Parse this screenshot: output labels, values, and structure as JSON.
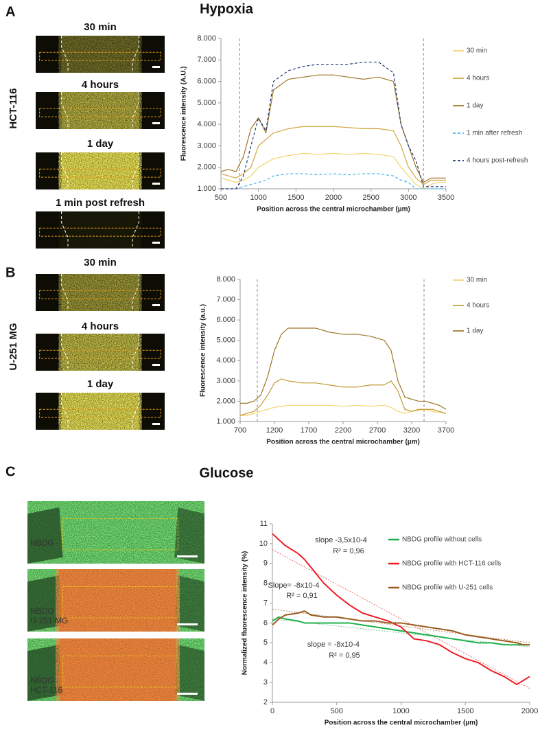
{
  "figure": {
    "panels": [
      {
        "letter": "A",
        "title": "Hypoxia",
        "cell_line": "HCT-116",
        "image_labels": [
          "30 min",
          "4 hours",
          "1 day",
          "1 min post refresh"
        ]
      },
      {
        "letter": "B",
        "cell_line": "U-251 MG",
        "image_labels": [
          "30 min",
          "4 hours",
          "1 day"
        ]
      },
      {
        "letter": "C",
        "title": "Glucose",
        "image_labels": [
          [
            "NBDG"
          ],
          [
            "NBDG",
            "U-251 MG"
          ],
          [
            "NBDG",
            "HCT-116"
          ]
        ]
      }
    ]
  },
  "chart_data": [
    {
      "type": "line",
      "xlabel": "Position across the central microchamber (µm)",
      "ylabel": "Fluorescence intensity (A.U.)",
      "xlim": [
        500,
        3500
      ],
      "xticks": [
        500,
        1000,
        1500,
        2000,
        2500,
        3000,
        3500
      ],
      "ylim": [
        1000,
        8000
      ],
      "yticks": [
        {
          "value": 1000,
          "label": "1.000"
        },
        {
          "value": 2000,
          "label": "2.000"
        },
        {
          "value": 3000,
          "label": "3.000"
        },
        {
          "value": 4000,
          "label": "4.000"
        },
        {
          "value": 5000,
          "label": "5.000"
        },
        {
          "value": 6000,
          "label": "6.000"
        },
        {
          "value": 7000,
          "label": "7.000"
        },
        {
          "value": 8000,
          "label": "8.000"
        }
      ],
      "vlines": [
        750,
        3200
      ],
      "legend": "right",
      "x": [
        500,
        600,
        700,
        800,
        900,
        1000,
        1100,
        1200,
        1400,
        1600,
        1800,
        2000,
        2200,
        2400,
        2600,
        2800,
        2900,
        3000,
        3100,
        3200,
        3300,
        3400,
        3500
      ],
      "series": [
        {
          "name": "30 min",
          "color": "#f2d36b",
          "dashed": false,
          "values": [
            1500,
            1400,
            1300,
            1400,
            1600,
            2000,
            2200,
            2400,
            2550,
            2650,
            2600,
            2650,
            2600,
            2650,
            2600,
            2500,
            2000,
            1600,
            1200,
            1000,
            1200,
            1300,
            1300
          ]
        },
        {
          "name": "4 hours",
          "color": "#d1a53c",
          "dashed": false,
          "values": [
            1700,
            1600,
            1500,
            1700,
            2000,
            3000,
            3300,
            3600,
            3800,
            3900,
            3900,
            3900,
            3850,
            3800,
            3800,
            3700,
            3000,
            2000,
            1500,
            1200,
            1400,
            1400,
            1400
          ]
        },
        {
          "name": "1 day",
          "color": "#9c7526",
          "dashed": false,
          "values": [
            1800,
            1900,
            1800,
            2500,
            3800,
            4300,
            3600,
            5600,
            6100,
            6200,
            6300,
            6300,
            6200,
            6100,
            6200,
            6000,
            4000,
            3000,
            2000,
            1300,
            1500,
            1500,
            1500
          ]
        },
        {
          "name": "1 min after refresh",
          "color": "#3fb6e6",
          "dashed": true,
          "values": [
            1000,
            1000,
            1000,
            1100,
            1200,
            1300,
            1400,
            1600,
            1700,
            1700,
            1650,
            1700,
            1650,
            1700,
            1700,
            1600,
            1400,
            1300,
            1000,
            1000,
            1000,
            1000,
            1000
          ]
        },
        {
          "name": "4 hours post-refresh",
          "color": "#1f3573",
          "dashed": true,
          "values": [
            1000,
            1000,
            1000,
            1600,
            3000,
            4300,
            3700,
            6000,
            6500,
            6700,
            6800,
            6800,
            6800,
            6900,
            6900,
            6400,
            4000,
            3000,
            2300,
            1100,
            1100,
            1100,
            1100
          ]
        }
      ]
    },
    {
      "type": "line",
      "xlabel": "Position across the central microchamber (µm)",
      "ylabel": "Fluorescence intensity (a.u.)",
      "xlim": [
        700,
        3700
      ],
      "xticks": [
        700,
        1200,
        1700,
        2200,
        2700,
        3200,
        3700
      ],
      "ylim": [
        1000,
        8000
      ],
      "yticks": [
        {
          "value": 1000,
          "label": "1.000"
        },
        {
          "value": 2000,
          "label": "2.000"
        },
        {
          "value": 3000,
          "label": "3.000"
        },
        {
          "value": 4000,
          "label": "4.000"
        },
        {
          "value": 5000,
          "label": "5.000"
        },
        {
          "value": 6000,
          "label": "6.000"
        },
        {
          "value": 7000,
          "label": "7.000"
        },
        {
          "value": 8000,
          "label": "8.000"
        }
      ],
      "vlines": [
        950,
        3380
      ],
      "legend": "right",
      "x": [
        700,
        800,
        900,
        1000,
        1100,
        1200,
        1300,
        1400,
        1600,
        1800,
        2000,
        2200,
        2400,
        2600,
        2800,
        2900,
        3000,
        3100,
        3200,
        3300,
        3400,
        3500,
        3600,
        3700
      ],
      "series": [
        {
          "name": "30 min",
          "color": "#f2d36b",
          "dashed": false,
          "values": [
            1300,
            1300,
            1400,
            1500,
            1600,
            1700,
            1750,
            1800,
            1800,
            1800,
            1800,
            1750,
            1800,
            1750,
            1800,
            1700,
            1500,
            1400,
            1500,
            1550,
            1600,
            1500,
            1450,
            1400
          ]
        },
        {
          "name": "4 hours",
          "color": "#c39b32",
          "dashed": false,
          "values": [
            1300,
            1400,
            1500,
            1800,
            2300,
            2900,
            3100,
            3000,
            2900,
            2900,
            2800,
            2700,
            2700,
            2800,
            2800,
            3000,
            2500,
            1600,
            1500,
            1600,
            1600,
            1600,
            1500,
            1400
          ]
        },
        {
          "name": "1 day",
          "color": "#9c7526",
          "dashed": false,
          "values": [
            1900,
            1900,
            2000,
            2300,
            3200,
            4500,
            5300,
            5600,
            5600,
            5600,
            5400,
            5300,
            5300,
            5200,
            5000,
            4500,
            3000,
            2200,
            2100,
            2000,
            2000,
            1900,
            1800,
            1600
          ]
        }
      ]
    },
    {
      "type": "line",
      "xlabel": "Position across the central microchamber (µm)",
      "ylabel": "Normalized fluorescence intensity  (%)",
      "xlim": [
        0,
        2000
      ],
      "xticks": [
        0,
        500,
        1000,
        1500,
        2000
      ],
      "ylim": [
        2,
        11
      ],
      "yticks": [
        2,
        3,
        4,
        5,
        6,
        7,
        8,
        9,
        10,
        11
      ],
      "legend": "top-right",
      "x": [
        0,
        50,
        100,
        200,
        250,
        300,
        400,
        500,
        600,
        700,
        800,
        900,
        1000,
        1100,
        1200,
        1300,
        1400,
        1500,
        1600,
        1700,
        1800,
        1900,
        1950,
        2000
      ],
      "series": [
        {
          "name": "NBDG profile without cells",
          "color": "#1db14b",
          "dashed": false,
          "values": [
            6.1,
            6.3,
            6.2,
            6.1,
            6.0,
            6.0,
            6.0,
            6.0,
            6.0,
            5.9,
            5.8,
            5.7,
            5.6,
            5.5,
            5.4,
            5.3,
            5.2,
            5.1,
            5.0,
            5.0,
            4.9,
            4.9,
            4.9,
            4.9
          ]
        },
        {
          "name": "NBDG profile with HCT-116 cells",
          "color": "#ee1c25",
          "dashed": false,
          "values": [
            10.5,
            10.2,
            9.9,
            9.5,
            9.2,
            8.8,
            8.0,
            7.4,
            6.9,
            6.5,
            6.3,
            6.1,
            5.8,
            5.2,
            5.1,
            4.9,
            4.5,
            4.2,
            4.0,
            3.6,
            3.3,
            2.9,
            3.1,
            3.3
          ]
        },
        {
          "name": "NBDG profile with U-251 cells",
          "color": "#9a5a1e",
          "dashed": false,
          "values": [
            5.9,
            6.2,
            6.4,
            6.5,
            6.6,
            6.4,
            6.3,
            6.3,
            6.2,
            6.1,
            6.1,
            6.0,
            6.0,
            5.9,
            5.8,
            5.7,
            5.6,
            5.4,
            5.3,
            5.2,
            5.1,
            5.0,
            4.9,
            4.9
          ]
        }
      ],
      "trendlines": [
        {
          "color": "#e86a6a",
          "x": [
            0,
            2000
          ],
          "values": [
            9.7,
            2.7
          ]
        },
        {
          "color": "#7fc48f",
          "x": [
            0,
            2000
          ],
          "values": [
            6.2,
            4.8
          ]
        },
        {
          "color": "#b58a5e",
          "x": [
            0,
            2000
          ],
          "values": [
            6.7,
            5.0
          ]
        }
      ],
      "annotations": [
        "slope -3,5x10-4",
        "R² = 0,96",
        "Slope= -8x10-4",
        "R² = 0,91",
        "slope = -8x10-4",
        "R² = 0,95"
      ]
    }
  ]
}
